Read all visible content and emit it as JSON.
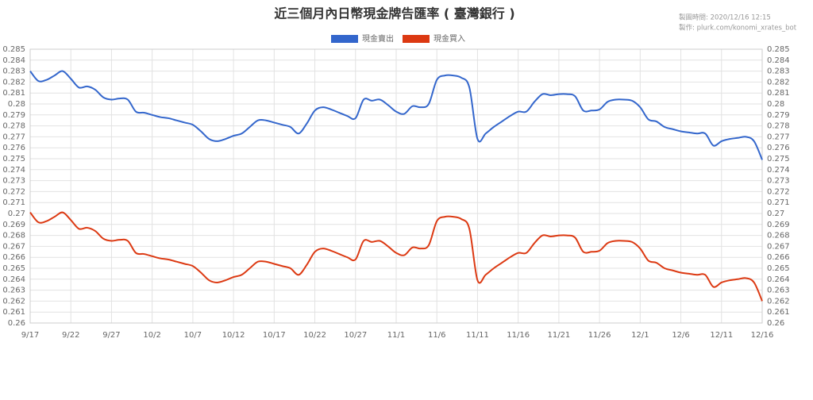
{
  "chart_data": {
    "type": "line",
    "title": "近三個月內日幣現金牌告匯率 ( 臺灣銀行 )",
    "annotations": [
      "製圖時間: 2020/12/16 12:15",
      "製作: plurk.com/konomi_xrates_bot"
    ],
    "categories": [
      "9/17",
      null,
      null,
      null,
      null,
      "9/22",
      null,
      null,
      null,
      null,
      "9/27",
      null,
      null,
      null,
      null,
      "10/2",
      null,
      null,
      null,
      null,
      "10/7",
      null,
      null,
      null,
      null,
      "10/12",
      null,
      null,
      null,
      null,
      "10/17",
      null,
      null,
      null,
      null,
      "10/22",
      null,
      null,
      null,
      null,
      "10/27",
      null,
      null,
      null,
      null,
      "11/1",
      null,
      null,
      null,
      null,
      "11/6",
      null,
      null,
      null,
      null,
      "11/11",
      null,
      null,
      null,
      null,
      "11/16",
      null,
      null,
      null,
      null,
      "11/21",
      null,
      null,
      null,
      null,
      "11/26",
      null,
      null,
      null,
      null,
      "12/1",
      null,
      null,
      null,
      null,
      "12/6",
      null,
      null,
      null,
      null,
      "12/11",
      null,
      null,
      null,
      null,
      "12/16"
    ],
    "series": [
      {
        "name": "現金賣出",
        "color": "#3366cc",
        "values": [
          0.283,
          0.2821,
          0.2822,
          0.2826,
          0.283,
          0.2823,
          0.2815,
          0.2816,
          0.2813,
          0.2806,
          0.2804,
          0.2805,
          0.2804,
          0.2793,
          0.2792,
          0.279,
          0.2788,
          0.2787,
          0.2785,
          0.2783,
          0.2781,
          0.2775,
          0.2768,
          0.2766,
          0.2768,
          0.2771,
          0.2773,
          0.2779,
          0.2785,
          0.2785,
          0.2783,
          0.2781,
          0.2779,
          0.2773,
          0.2782,
          0.2794,
          0.2797,
          0.2795,
          0.2792,
          0.2789,
          0.2787,
          0.2804,
          0.2803,
          0.2804,
          0.2799,
          0.2793,
          0.2791,
          0.2798,
          0.2797,
          0.28,
          0.2822,
          0.2826,
          0.2826,
          0.2824,
          0.2815,
          0.2768,
          0.2773,
          0.2779,
          0.2784,
          0.2789,
          0.2793,
          0.2793,
          0.2802,
          0.2809,
          0.2808,
          0.2809,
          0.2809,
          0.2807,
          0.2794,
          0.2794,
          0.2795,
          0.2802,
          0.2804,
          0.2804,
          0.2803,
          0.2797,
          0.2786,
          0.2784,
          0.2779,
          0.2777,
          0.2775,
          0.2774,
          0.2773,
          0.2773,
          0.2762,
          0.2766,
          0.2768,
          0.2769,
          0.277,
          0.2766,
          0.2749
        ]
      },
      {
        "name": "現金買入",
        "color": "#dc3912",
        "values": [
          0.2701,
          0.2692,
          0.2693,
          0.2697,
          0.2701,
          0.2694,
          0.2686,
          0.2687,
          0.2684,
          0.2677,
          0.2675,
          0.2676,
          0.2675,
          0.2664,
          0.2663,
          0.2661,
          0.2659,
          0.2658,
          0.2656,
          0.2654,
          0.2652,
          0.2646,
          0.2639,
          0.2637,
          0.2639,
          0.2642,
          0.2644,
          0.265,
          0.2656,
          0.2656,
          0.2654,
          0.2652,
          0.265,
          0.2644,
          0.2653,
          0.2665,
          0.2668,
          0.2666,
          0.2663,
          0.266,
          0.2658,
          0.2675,
          0.2674,
          0.2675,
          0.267,
          0.2664,
          0.2662,
          0.2669,
          0.2668,
          0.2671,
          0.2693,
          0.2697,
          0.2697,
          0.2695,
          0.2686,
          0.2639,
          0.2644,
          0.265,
          0.2655,
          0.266,
          0.2664,
          0.2664,
          0.2673,
          0.268,
          0.2679,
          0.268,
          0.268,
          0.2678,
          0.2665,
          0.2665,
          0.2666,
          0.2673,
          0.2675,
          0.2675,
          0.2674,
          0.2668,
          0.2657,
          0.2655,
          0.265,
          0.2648,
          0.2646,
          0.2645,
          0.2644,
          0.2644,
          0.2633,
          0.2637,
          0.2639,
          0.264,
          0.2641,
          0.2637,
          0.262
        ]
      }
    ],
    "ylim": [
      0.26,
      0.285
    ],
    "yticks": [
      0.26,
      0.261,
      0.262,
      0.263,
      0.264,
      0.265,
      0.266,
      0.267,
      0.268,
      0.269,
      0.27,
      0.271,
      0.272,
      0.273,
      0.274,
      0.275,
      0.276,
      0.277,
      0.278,
      0.279,
      0.28,
      0.281,
      0.282,
      0.283,
      0.284,
      0.285
    ],
    "grid": true,
    "legend": "top"
  }
}
